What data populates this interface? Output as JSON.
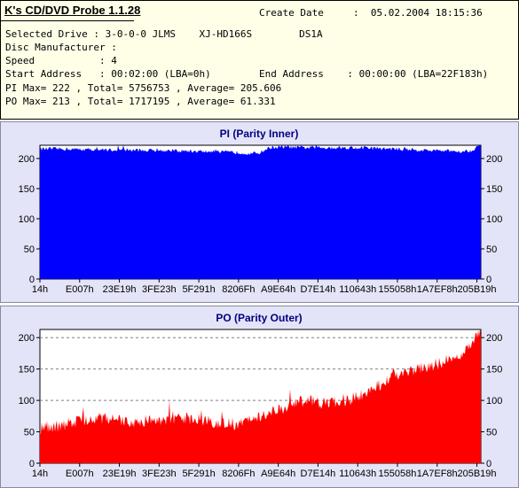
{
  "header": {
    "app_title": "K's CD/DVD Probe 1.1.28",
    "create_date_label": "Create Date",
    "create_date_value": ":  05.02.2004 18:15:36",
    "selected_drive": "Selected Drive : 3-0-0-0 JLMS    XJ-HD166S        DS1A",
    "disc_manufacturer": "Disc Manufacturer :",
    "speed": "Speed           : 4",
    "start_address": "Start Address   : 00:02:00 (LBA=0h)",
    "end_address": "End Address    : 00:00:00 (LBA=22F183h)",
    "pi_summary": "PI Max= 222 , Total= 5756753 , Average= 205.606",
    "po_summary": "PO Max= 213 , Total= 1717195 , Average= 61.331"
  },
  "colors": {
    "pi_fill": "#0000ff",
    "po_fill": "#ff0000",
    "panel_bg": "#e4e4f8",
    "title_color": "#000080"
  },
  "chart_data": [
    {
      "type": "area",
      "title": "PI (Parity Inner)",
      "xlabel": "",
      "ylabel": "",
      "x_ticks": [
        "14h",
        "E007h",
        "23E19h",
        "3FE23h",
        "5F291h",
        "8206Fh",
        "A9E64h",
        "D7E14h",
        "110643h",
        "155058h",
        "1A7EF8h",
        "205B19h"
      ],
      "yticks": [
        0,
        50,
        100,
        150,
        200
      ],
      "ylim": [
        0,
        222
      ],
      "grid": false,
      "fill_color": "#0000ff",
      "profile": [
        [
          0,
          216
        ],
        [
          0.05,
          216
        ],
        [
          0.1,
          215
        ],
        [
          0.2,
          214
        ],
        [
          0.3,
          213
        ],
        [
          0.35,
          212
        ],
        [
          0.4,
          211
        ],
        [
          0.45,
          210
        ],
        [
          0.48,
          208
        ],
        [
          0.5,
          210
        ],
        [
          0.52,
          218
        ],
        [
          0.55,
          219
        ],
        [
          0.6,
          218
        ],
        [
          0.7,
          218
        ],
        [
          0.8,
          216
        ],
        [
          0.9,
          213
        ],
        [
          0.95,
          212
        ],
        [
          0.98,
          213
        ],
        [
          0.99,
          220
        ],
        [
          1.0,
          220
        ]
      ],
      "noise": 3,
      "series": [
        {
          "values_summary": {
            "max": 222,
            "total": 5756753,
            "average": 205.606
          }
        }
      ]
    },
    {
      "type": "area",
      "title": "PO (Parity Outer)",
      "xlabel": "",
      "ylabel": "",
      "x_ticks": [
        "14h",
        "E007h",
        "23E19h",
        "3FE23h",
        "5F291h",
        "8206Fh",
        "A9E64h",
        "D7E14h",
        "110643h",
        "155058h",
        "1A7EF8h",
        "205B19h"
      ],
      "yticks": [
        0,
        50,
        100,
        150,
        200
      ],
      "ylim": [
        0,
        213
      ],
      "grid": true,
      "fill_color": "#ff0000",
      "profile": [
        [
          0,
          55
        ],
        [
          0.05,
          60
        ],
        [
          0.1,
          70
        ],
        [
          0.15,
          72
        ],
        [
          0.2,
          65
        ],
        [
          0.25,
          68
        ],
        [
          0.3,
          72
        ],
        [
          0.35,
          70
        ],
        [
          0.4,
          65
        ],
        [
          0.45,
          62
        ],
        [
          0.5,
          75
        ],
        [
          0.55,
          88
        ],
        [
          0.6,
          100
        ],
        [
          0.65,
          95
        ],
        [
          0.7,
          100
        ],
        [
          0.75,
          115
        ],
        [
          0.8,
          140
        ],
        [
          0.85,
          150
        ],
        [
          0.9,
          158
        ],
        [
          0.95,
          170
        ],
        [
          0.98,
          185
        ],
        [
          0.99,
          205
        ],
        [
          1.0,
          208
        ]
      ],
      "noise": 10,
      "series": [
        {
          "values_summary": {
            "max": 213,
            "total": 1717195,
            "average": 61.331
          }
        }
      ]
    }
  ]
}
